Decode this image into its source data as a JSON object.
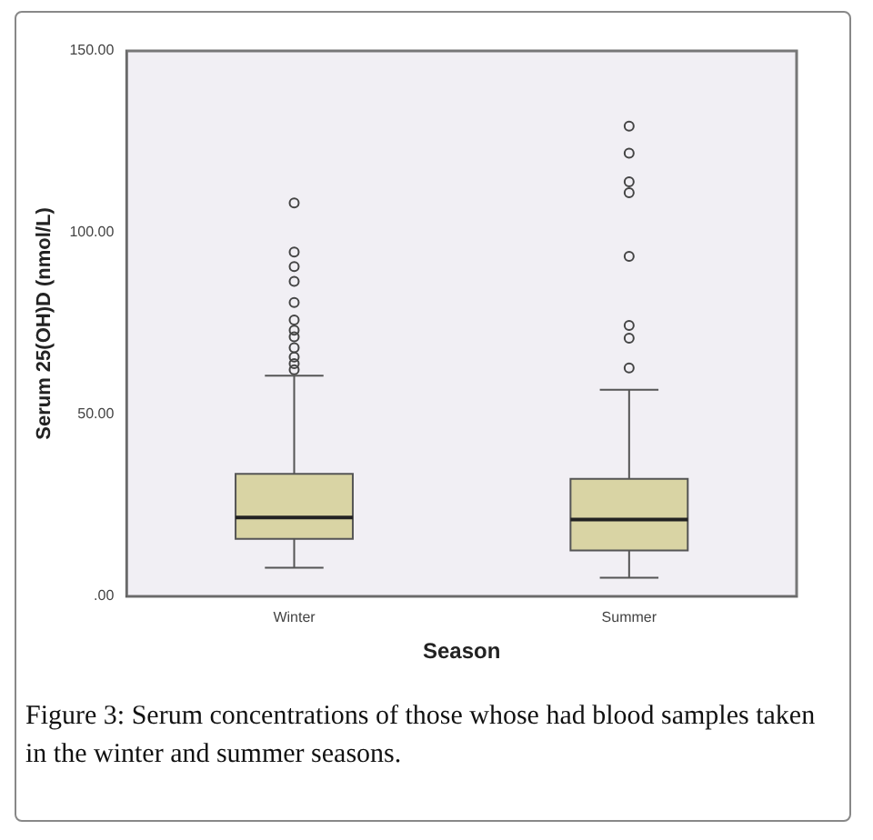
{
  "chart_data": {
    "type": "box",
    "xlabel": "Season",
    "ylabel": "Serum 25(OH)D (nmol/L)",
    "categories": [
      "Winter",
      "Summer"
    ],
    "color": "#d9d4a4",
    "boxes": [
      {
        "low": 7.9,
        "q1": 15.8,
        "median": 21.7,
        "q3": 33.7,
        "high": 60.7,
        "outliers": [
          62.3,
          64,
          65.8,
          68.4,
          71.4,
          73.2,
          76,
          80.8,
          86.6,
          90.7,
          94.7,
          108.2
        ]
      },
      {
        "low": 5.1,
        "q1": 12.6,
        "median": 21.1,
        "q3": 32.3,
        "high": 56.8,
        "outliers": [
          62.8,
          71,
          74.5,
          93.5,
          111,
          114,
          121.9,
          129.3
        ]
      }
    ],
    "ylim": [
      0,
      150
    ],
    "yticks": [
      {
        "value": 0,
        "label": ".00"
      },
      {
        "value": 50,
        "label": "50.00"
      },
      {
        "value": 100,
        "label": "100.00"
      },
      {
        "value": 150,
        "label": "150.00"
      }
    ],
    "grid": false,
    "legend": false,
    "annotations": [
      "Figure 3: Serum concentrations of those whose had blood samples taken in the winter and summer seasons."
    ]
  }
}
